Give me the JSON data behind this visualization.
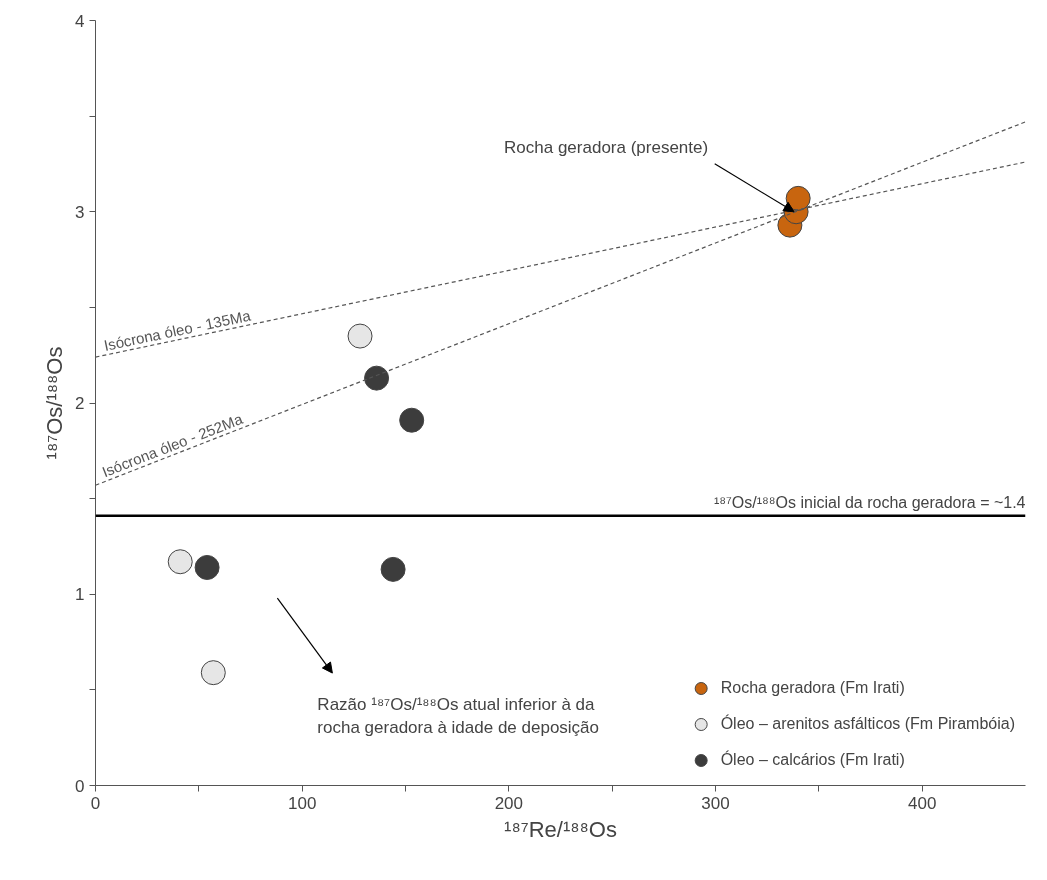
{
  "chart_data": {
    "type": "scatter",
    "xlabel": "¹⁸⁷Re/¹⁸⁸Os",
    "ylabel": "¹⁸⁷Os/¹⁸⁸Os",
    "xlim": [
      0,
      450
    ],
    "ylim": [
      0,
      4
    ],
    "xticks": [
      0,
      {
        "value": 50,
        "label": null
      },
      100,
      {
        "value": 150,
        "label": null
      },
      200,
      {
        "value": 250,
        "label": null
      },
      300,
      {
        "value": 350,
        "label": null
      },
      400
    ],
    "yticks": [
      0,
      {
        "value": 0.5,
        "label": null
      },
      1,
      {
        "value": 1.5,
        "label": null
      },
      2,
      {
        "value": 2.5,
        "label": null
      },
      3,
      {
        "value": 3.5,
        "label": null
      },
      4
    ],
    "grid": false,
    "legend": "bottom right",
    "series": [
      {
        "name": "Rocha geradora (Fm Irati)",
        "marker": "circle",
        "color": "#c8650f",
        "x": [
          336,
          339,
          340
        ],
        "values": [
          2.93,
          3.0,
          3.07
        ]
      },
      {
        "name": "Óleo – arenitos asfálticos (Fm Pirambóia)",
        "marker": "circle",
        "color": "#e6e6e6",
        "x": [
          128,
          41,
          57
        ],
        "values": [
          2.35,
          1.17,
          0.59
        ]
      },
      {
        "name": "Óleo – calcários (Fm Irati)",
        "marker": "circle",
        "color": "#3c3c3c",
        "x": [
          136,
          153,
          54,
          144
        ],
        "values": [
          2.13,
          1.91,
          1.14,
          1.13
        ]
      },
      {
        "name": "Isócrona óleo - 135Ma",
        "type": "line",
        "line_style": "dashed",
        "color": "#555555",
        "x": [
          0,
          450
        ],
        "values": [
          2.24,
          3.26
        ]
      },
      {
        "name": "Isócrona óleo - 252Ma",
        "type": "line",
        "line_style": "dashed",
        "color": "#555555",
        "x": [
          0,
          450
        ],
        "values": [
          1.57,
          3.47
        ]
      }
    ],
    "ref_lines": [
      {
        "axis": "y",
        "value": 1.41,
        "label": "¹⁸⁷Os/¹⁸⁸Os inicial da rocha geradora = ~1.4",
        "color": "#000000"
      }
    ],
    "annotations": [
      {
        "text": "Rocha geradora (presente)",
        "x": 338,
        "y": 3.0
      },
      "Razão ¹⁸⁷Os/¹⁸⁸Os atual inferior à da\nrocha geradora à idade de deposição"
    ]
  }
}
